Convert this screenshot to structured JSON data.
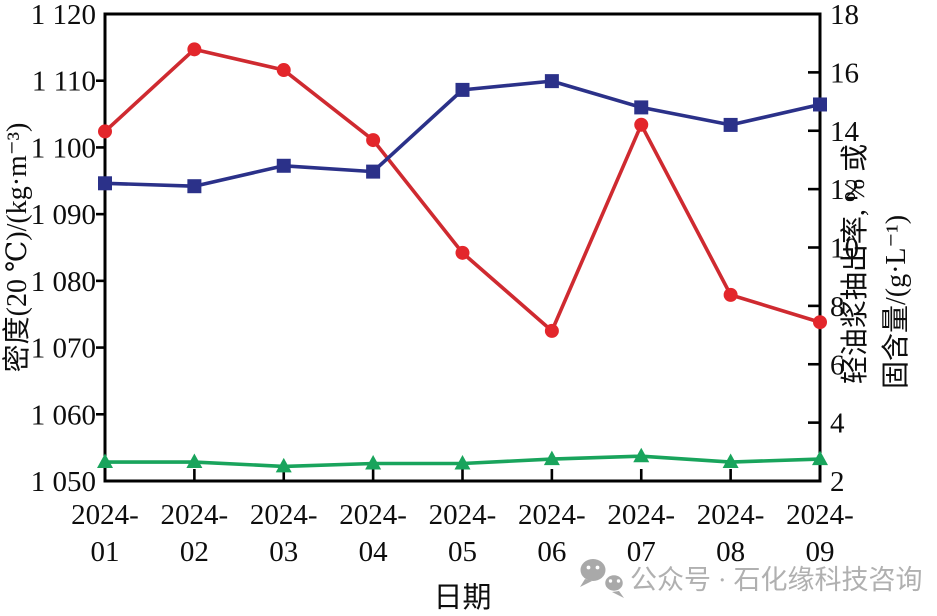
{
  "figure": {
    "watermark": {
      "icon": "wechat-icon",
      "text": "公众号 · 石化缘科技咨询",
      "color": "#aaaaaa"
    }
  },
  "chart_data": {
    "type": "line",
    "title": "",
    "x": {
      "label": "日期",
      "categories": [
        "2024-01",
        "2024-02",
        "2024-03",
        "2024-04",
        "2024-05",
        "2024-06",
        "2024-07",
        "2024-08",
        "2024-09"
      ]
    },
    "left_axis": {
      "label": "密度(20 ℃)/(kg·m⁻³)",
      "min": 1050,
      "max": 1120,
      "tick_step": 10,
      "tick_values": [
        1050,
        1060,
        1070,
        1080,
        1090,
        1100,
        1110,
        1120
      ],
      "tick_labels": [
        "1 050",
        "1 060",
        "1 070",
        "1 080",
        "1 090",
        "1 100",
        "1 110",
        "1 120"
      ]
    },
    "right_axis": {
      "label_line1": "轻油浆抽出率, % 或",
      "label_line2": "固含量/(g·L⁻¹)",
      "min": 2,
      "max": 18,
      "tick_step": 2,
      "tick_values": [
        2,
        4,
        6,
        8,
        10,
        12,
        14,
        16,
        18
      ],
      "tick_labels": [
        "2",
        "4",
        "6",
        "8",
        "10",
        "12",
        "14",
        "16",
        "18"
      ]
    },
    "grid": false,
    "legend": "none",
    "series": [
      {
        "key": "density",
        "name": "密度(20 ℃)/(kg·m⁻³)",
        "axis": "left",
        "marker": "circle",
        "color": "#cf2a30",
        "marker_color": "#e3262b",
        "values": [
          1102.4,
          1114.7,
          1111.6,
          1101.1,
          1084.2,
          1072.5,
          1103.4,
          1077.9,
          1073.8
        ]
      },
      {
        "key": "light-slurry-extraction-rate",
        "name": "轻油浆抽出率/%",
        "axis": "right",
        "marker": "square",
        "color": "#2b3189",
        "marker_color": "#2b3189",
        "values": [
          12.2,
          12.1,
          12.8,
          12.6,
          15.4,
          15.7,
          14.8,
          14.2,
          14.9
        ]
      },
      {
        "key": "solid-content",
        "name": "固含量/(g·L⁻¹)",
        "axis": "right",
        "marker": "triangle",
        "color": "#19a45c",
        "marker_color": "#19a45c",
        "values": [
          2.65,
          2.65,
          2.5,
          2.6,
          2.6,
          2.75,
          2.85,
          2.65,
          2.75
        ]
      }
    ]
  }
}
